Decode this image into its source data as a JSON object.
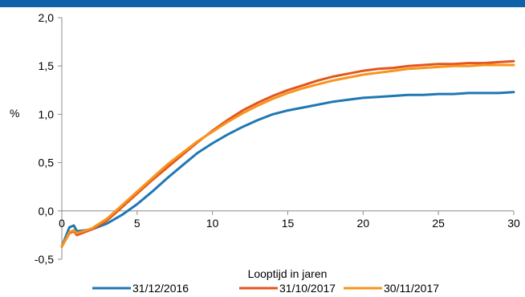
{
  "chart_data": {
    "type": "line",
    "title": "",
    "xlabel": "Looptijd in jaren",
    "ylabel": "%",
    "xlim": [
      0,
      30
    ],
    "ylim": [
      -0.5,
      2.0
    ],
    "xticks": [
      0,
      5,
      10,
      15,
      20,
      25,
      30
    ],
    "yticks": [
      -0.5,
      0.0,
      0.5,
      1.0,
      1.5,
      2.0
    ],
    "xtick_labels": [
      "0",
      "5",
      "10",
      "15",
      "20",
      "25",
      "30"
    ],
    "ytick_labels": [
      "-0,5",
      "0,0",
      "0,5",
      "1,0",
      "1,5",
      "2,0"
    ],
    "grid": false,
    "legend_position": "bottom",
    "series": [
      {
        "name": "31/12/2016",
        "color": "#1f77b4",
        "x": [
          0,
          0.5,
          0.8,
          1,
          2,
          3,
          4,
          5,
          6,
          7,
          8,
          9,
          10,
          11,
          12,
          13,
          14,
          15,
          16,
          17,
          18,
          19,
          20,
          21,
          22,
          23,
          24,
          25,
          26,
          27,
          28,
          29,
          30
        ],
        "y": [
          -0.37,
          -0.17,
          -0.15,
          -0.21,
          -0.19,
          -0.13,
          -0.04,
          0.07,
          0.2,
          0.34,
          0.47,
          0.6,
          0.7,
          0.79,
          0.87,
          0.94,
          1.0,
          1.04,
          1.07,
          1.1,
          1.13,
          1.15,
          1.17,
          1.18,
          1.19,
          1.2,
          1.2,
          1.21,
          1.21,
          1.22,
          1.22,
          1.22,
          1.23
        ]
      },
      {
        "name": "31/10/2017",
        "color": "#e2561d",
        "x": [
          0,
          0.5,
          0.8,
          1,
          2,
          3,
          4,
          5,
          6,
          7,
          8,
          9,
          10,
          11,
          12,
          13,
          14,
          15,
          16,
          17,
          18,
          19,
          20,
          21,
          22,
          23,
          24,
          25,
          26,
          27,
          28,
          29,
          30
        ],
        "y": [
          -0.37,
          -0.23,
          -0.21,
          -0.25,
          -0.19,
          -0.1,
          0.04,
          0.18,
          0.32,
          0.45,
          0.58,
          0.71,
          0.83,
          0.94,
          1.04,
          1.12,
          1.19,
          1.25,
          1.3,
          1.35,
          1.39,
          1.42,
          1.45,
          1.47,
          1.48,
          1.5,
          1.51,
          1.52,
          1.52,
          1.53,
          1.53,
          1.54,
          1.55
        ]
      },
      {
        "name": "30/11/2017",
        "color": "#f7941d",
        "x": [
          0,
          0.5,
          0.8,
          1,
          2,
          3,
          4,
          5,
          6,
          7,
          8,
          9,
          10,
          11,
          12,
          13,
          14,
          15,
          16,
          17,
          18,
          19,
          20,
          21,
          22,
          23,
          24,
          25,
          26,
          27,
          28,
          29,
          30
        ],
        "y": [
          -0.37,
          -0.22,
          -0.2,
          -0.23,
          -0.18,
          -0.08,
          0.06,
          0.2,
          0.34,
          0.48,
          0.6,
          0.72,
          0.82,
          0.92,
          1.01,
          1.09,
          1.16,
          1.22,
          1.27,
          1.31,
          1.35,
          1.38,
          1.41,
          1.43,
          1.45,
          1.47,
          1.48,
          1.49,
          1.5,
          1.5,
          1.51,
          1.51,
          1.51
        ]
      }
    ]
  }
}
